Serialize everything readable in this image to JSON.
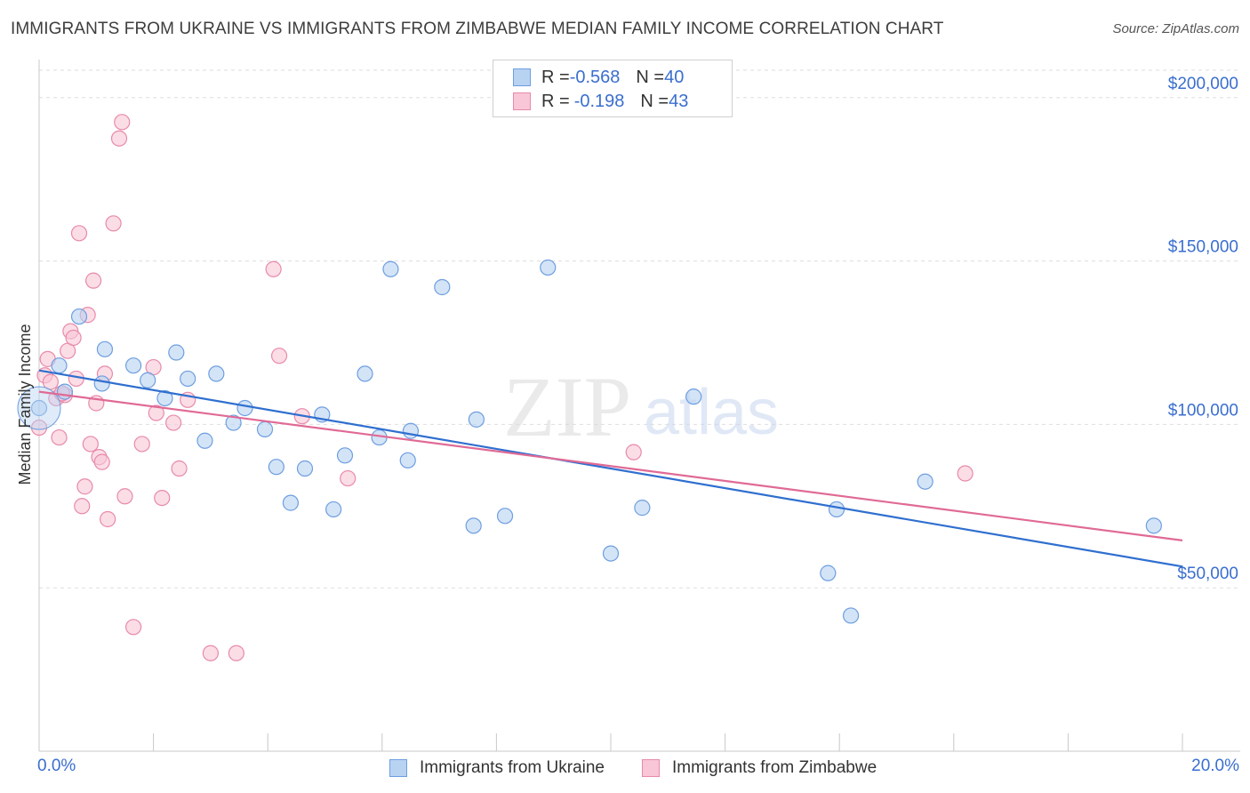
{
  "header": {
    "title": "IMMIGRANTS FROM UKRAINE VS IMMIGRANTS FROM ZIMBABWE MEDIAN FAMILY INCOME CORRELATION CHART",
    "source": "Source: ZipAtlas.com"
  },
  "watermark": {
    "zip": "ZIP",
    "atlas": "atlas"
  },
  "legend": {
    "ukraine": {
      "r_label": "R = ",
      "r_value": "-0.568",
      "n_label": "N = ",
      "n_value": "40"
    },
    "zimbabwe": {
      "r_label": "R = ",
      "r_value": "-0.198",
      "n_label": "N = ",
      "n_value": "43"
    }
  },
  "colors": {
    "ukraine_fill": "#b8d2f2",
    "ukraine_stroke": "#6d9ee0",
    "ukraine_line": "#2f6fcf",
    "zimbabwe_fill": "#f8c6d6",
    "zimbabwe_stroke": "#e88aaa",
    "zimbabwe_line": "#e06a95",
    "tick_text": "#3a6ecf",
    "grid": "#dedede"
  },
  "chart_data": {
    "type": "scatter",
    "title": "IMMIGRANTS FROM UKRAINE VS IMMIGRANTS FROM ZIMBABWE MEDIAN FAMILY INCOME CORRELATION CHART",
    "xlabel": "",
    "ylabel": "Median Family Income",
    "xlim": [
      0,
      20
    ],
    "ylim": [
      0,
      210000
    ],
    "x_tick_labels": [
      "0.0%",
      "20.0%"
    ],
    "y_ticks": [
      50000,
      100000,
      150000,
      200000
    ],
    "y_tick_labels": [
      "$50,000",
      "$100,000",
      "$150,000",
      "$200,000"
    ],
    "grid": true,
    "legend_position": "top-center",
    "series": [
      {
        "name": "Immigrants from Ukraine",
        "points": [
          [
            0.0,
            105000
          ],
          [
            0.35,
            118000
          ],
          [
            0.7,
            133000
          ],
          [
            0.45,
            110000
          ],
          [
            1.15,
            123000
          ],
          [
            1.1,
            112500
          ],
          [
            1.65,
            118000
          ],
          [
            1.9,
            113500
          ],
          [
            2.2,
            108000
          ],
          [
            2.4,
            122000
          ],
          [
            2.6,
            114000
          ],
          [
            2.9,
            95000
          ],
          [
            3.1,
            115500
          ],
          [
            3.4,
            100500
          ],
          [
            3.6,
            105000
          ],
          [
            3.95,
            98500
          ],
          [
            4.15,
            87000
          ],
          [
            4.4,
            76000
          ],
          [
            4.65,
            86500
          ],
          [
            4.95,
            103000
          ],
          [
            5.15,
            74000
          ],
          [
            5.35,
            90500
          ],
          [
            5.7,
            115500
          ],
          [
            5.95,
            96000
          ],
          [
            6.15,
            147500
          ],
          [
            6.45,
            89000
          ],
          [
            6.5,
            98000
          ],
          [
            7.05,
            142000
          ],
          [
            7.6,
            69000
          ],
          [
            7.65,
            101500
          ],
          [
            8.15,
            72000
          ],
          [
            8.9,
            148000
          ],
          [
            10.0,
            60500
          ],
          [
            10.55,
            74500
          ],
          [
            11.45,
            108500
          ],
          [
            13.8,
            54500
          ],
          [
            13.95,
            74000
          ],
          [
            14.2,
            41500
          ],
          [
            15.5,
            82500
          ],
          [
            19.5,
            69000
          ]
        ]
      },
      {
        "name": "Immigrants from Zimbabwe",
        "points": [
          [
            0.0,
            99000
          ],
          [
            0.1,
            115000
          ],
          [
            0.15,
            120000
          ],
          [
            0.3,
            108000
          ],
          [
            0.35,
            96000
          ],
          [
            0.45,
            109000
          ],
          [
            0.5,
            122500
          ],
          [
            0.55,
            128500
          ],
          [
            0.6,
            126500
          ],
          [
            0.65,
            114000
          ],
          [
            0.7,
            158500
          ],
          [
            0.75,
            75000
          ],
          [
            0.8,
            81000
          ],
          [
            0.85,
            133500
          ],
          [
            0.9,
            94000
          ],
          [
            0.95,
            144000
          ],
          [
            1.0,
            106500
          ],
          [
            1.05,
            90000
          ],
          [
            1.1,
            88500
          ],
          [
            1.15,
            115500
          ],
          [
            1.2,
            71000
          ],
          [
            1.3,
            161500
          ],
          [
            1.4,
            187500
          ],
          [
            1.45,
            192500
          ],
          [
            1.5,
            78000
          ],
          [
            1.65,
            38000
          ],
          [
            1.8,
            94000
          ],
          [
            2.0,
            117500
          ],
          [
            2.05,
            103500
          ],
          [
            2.15,
            77500
          ],
          [
            2.35,
            100500
          ],
          [
            2.45,
            86500
          ],
          [
            2.6,
            107500
          ],
          [
            3.0,
            30000
          ],
          [
            3.45,
            30000
          ],
          [
            4.1,
            147500
          ],
          [
            4.2,
            121000
          ],
          [
            4.6,
            102500
          ],
          [
            5.4,
            83500
          ],
          [
            10.4,
            91500
          ],
          [
            16.2,
            85000
          ],
          [
            0.2,
            113000
          ],
          [
            0.4,
            109500
          ]
        ]
      }
    ],
    "trend_lines": [
      {
        "series": "Immigrants from Ukraine",
        "from": [
          0,
          116500
        ],
        "to": [
          20,
          56500
        ]
      },
      {
        "series": "Immigrants from Zimbabwe",
        "from": [
          0,
          110000
        ],
        "to": [
          20,
          64500
        ]
      }
    ]
  },
  "bottom_legend": {
    "ukraine": "Immigrants from Ukraine",
    "zimbabwe": "Immigrants from Zimbabwe"
  }
}
